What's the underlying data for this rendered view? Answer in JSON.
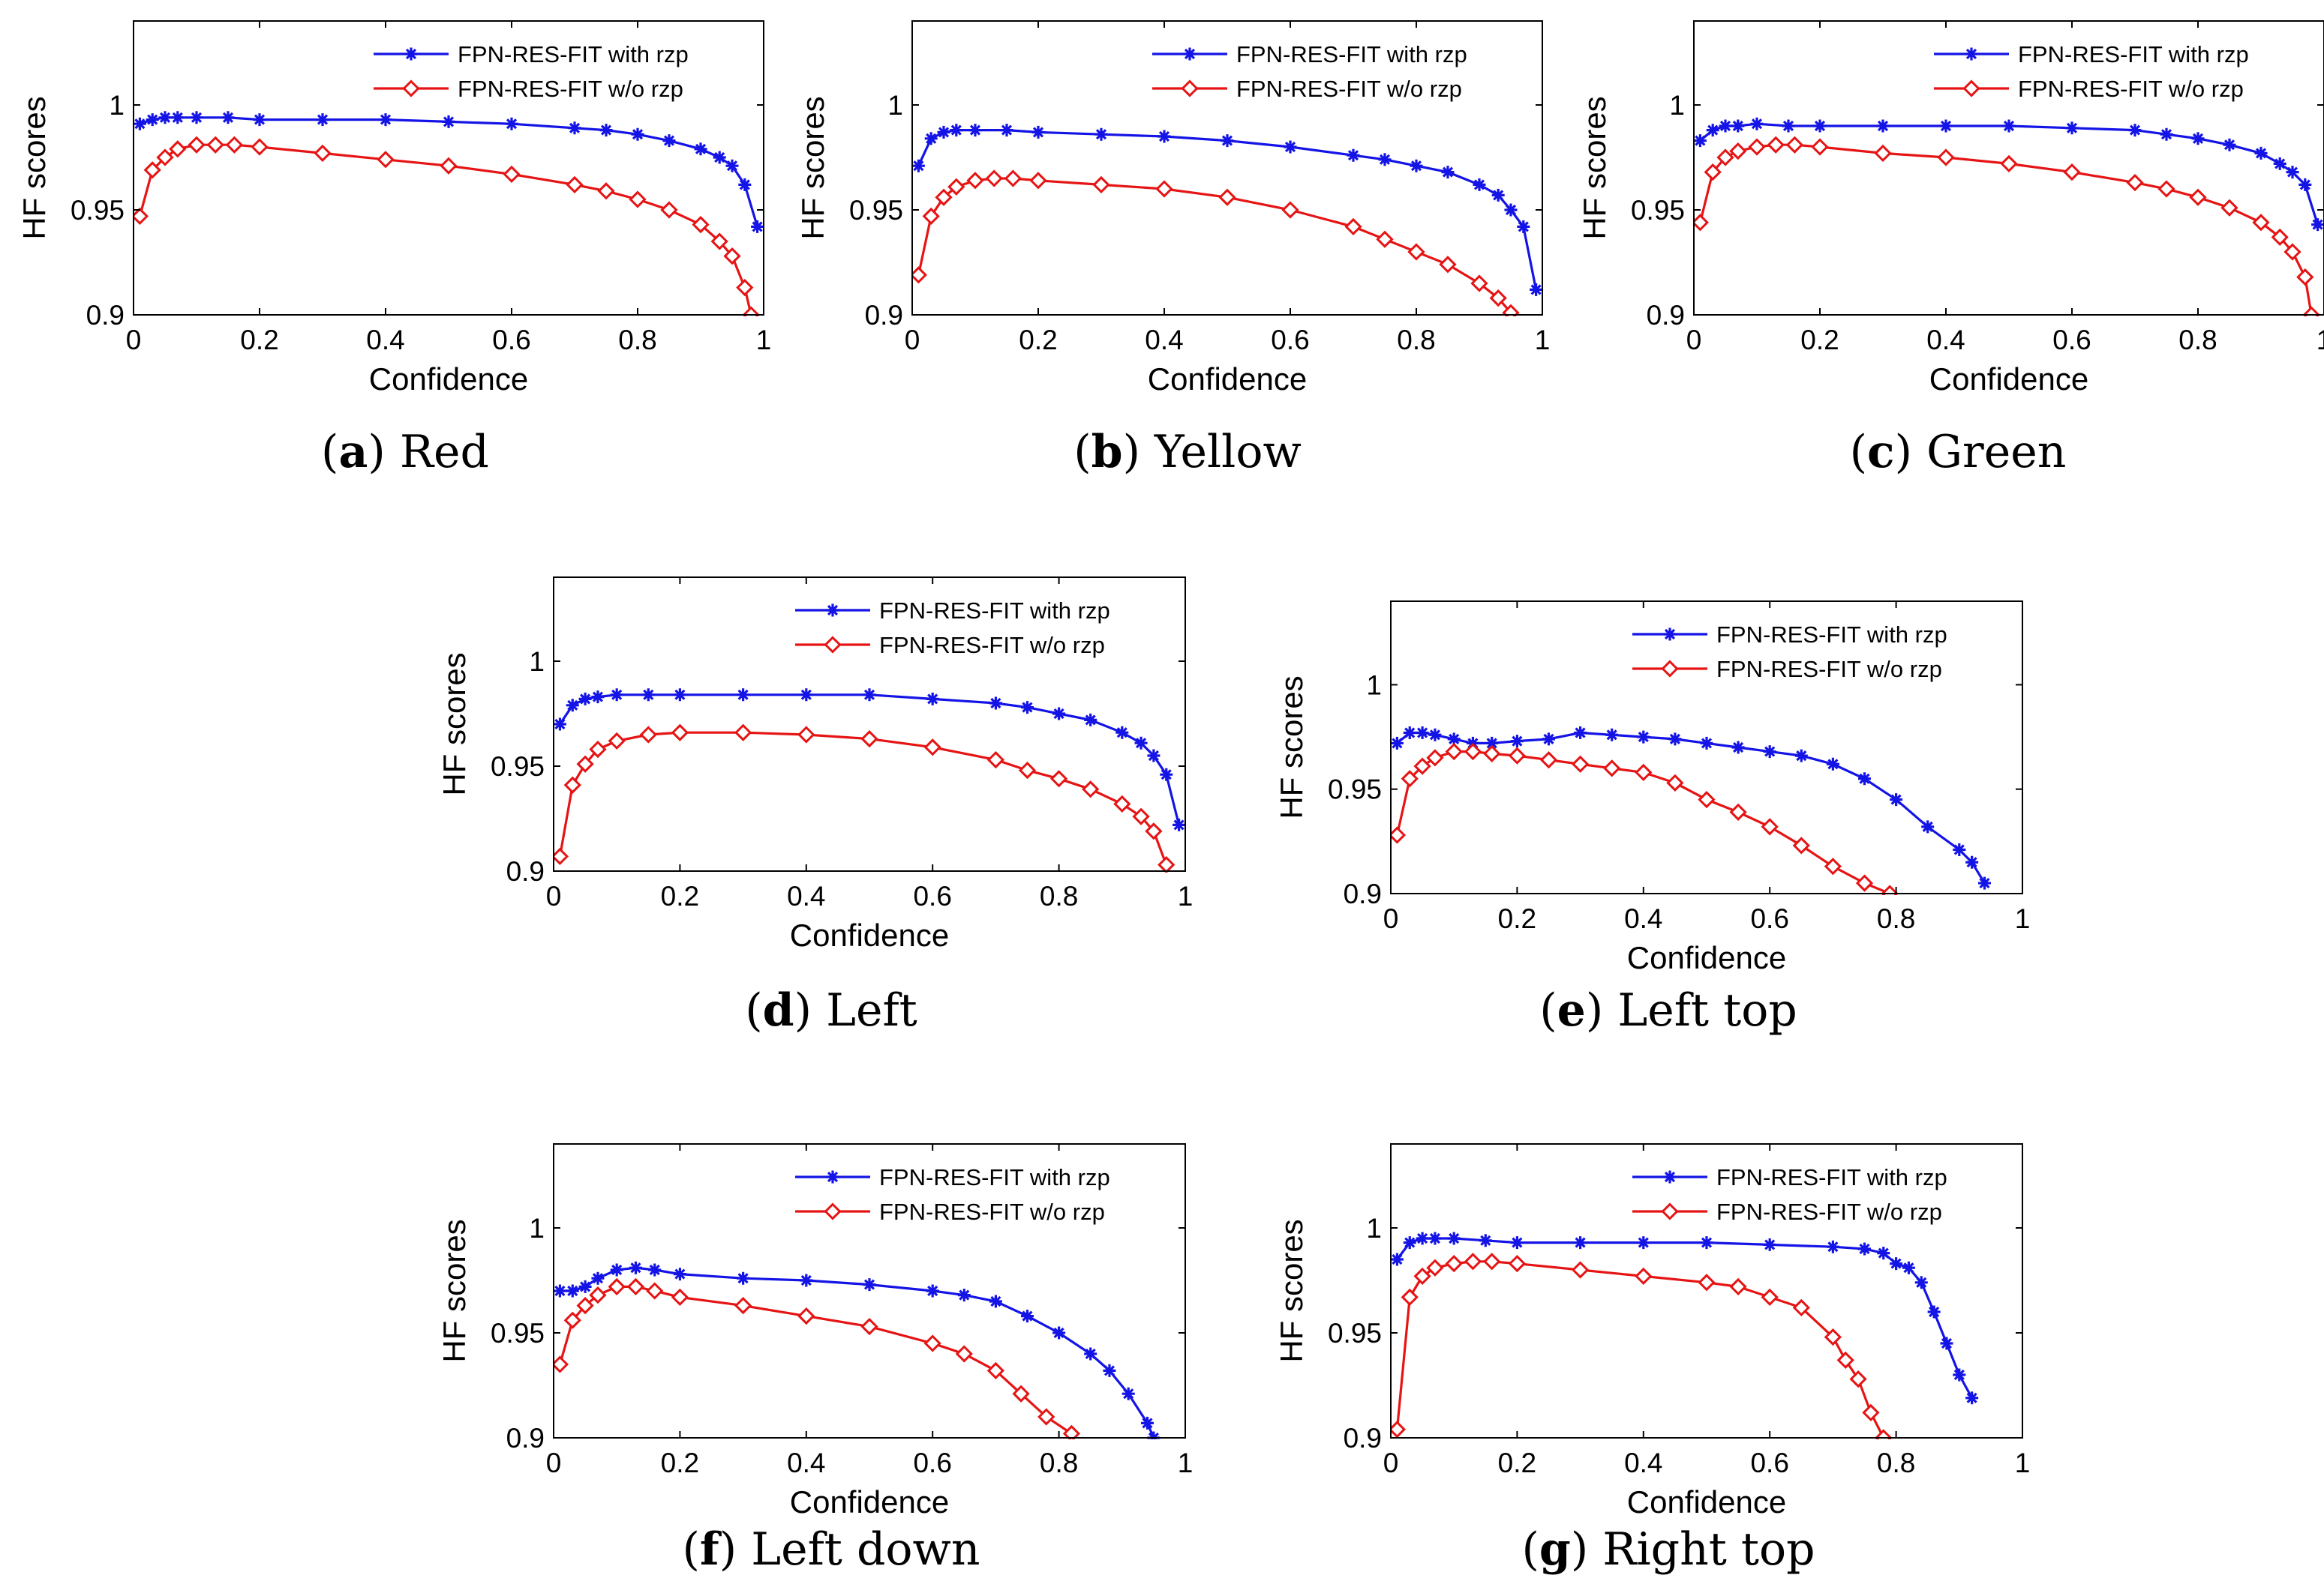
{
  "figure": {
    "colors": {
      "with_rzp": "#1414e6",
      "without_rzp": "#e61414",
      "axis": "#000000"
    },
    "markers": {
      "with_rzp": "asterisk",
      "without_rzp": "diamond"
    }
  },
  "chart_data": [
    {
      "id": "a",
      "letter": "a",
      "name": "Red",
      "type": "line",
      "xlabel": "Confidence",
      "ylabel": "HF scores",
      "xlim": [
        0,
        1
      ],
      "ylim": [
        0.9,
        1.04
      ],
      "xticks": [
        "0",
        "0.2",
        "0.4",
        "0.6",
        "0.8",
        "1"
      ],
      "yticks": [
        "0.9",
        "0.95",
        "1"
      ],
      "legend_position": "top-right",
      "series": [
        {
          "name": "FPN-RES-FIT with rzp",
          "marker": "asterisk",
          "x": [
            0.01,
            0.03,
            0.05,
            0.07,
            0.1,
            0.15,
            0.2,
            0.3,
            0.4,
            0.5,
            0.6,
            0.7,
            0.75,
            0.8,
            0.85,
            0.9,
            0.93,
            0.95,
            0.97,
            0.99
          ],
          "y": [
            0.991,
            0.993,
            0.994,
            0.994,
            0.994,
            0.994,
            0.993,
            0.993,
            0.993,
            0.992,
            0.991,
            0.989,
            0.988,
            0.986,
            0.983,
            0.979,
            0.975,
            0.971,
            0.962,
            0.942
          ]
        },
        {
          "name": "FPN-RES-FIT w/o rzp",
          "marker": "diamond",
          "x": [
            0.01,
            0.03,
            0.05,
            0.07,
            0.1,
            0.13,
            0.16,
            0.2,
            0.3,
            0.4,
            0.5,
            0.6,
            0.7,
            0.75,
            0.8,
            0.85,
            0.9,
            0.93,
            0.95,
            0.97,
            0.98
          ],
          "y": [
            0.947,
            0.969,
            0.975,
            0.979,
            0.981,
            0.981,
            0.981,
            0.98,
            0.977,
            0.974,
            0.971,
            0.967,
            0.962,
            0.959,
            0.955,
            0.95,
            0.943,
            0.935,
            0.928,
            0.913,
            0.9
          ]
        }
      ]
    },
    {
      "id": "b",
      "letter": "b",
      "name": "Yellow",
      "type": "line",
      "xlabel": "Confidence",
      "ylabel": "HF scores",
      "xlim": [
        0,
        1
      ],
      "ylim": [
        0.9,
        1.04
      ],
      "xticks": [
        "0",
        "0.2",
        "0.4",
        "0.6",
        "0.8",
        "1"
      ],
      "yticks": [
        "0.9",
        "0.95",
        "1"
      ],
      "legend_position": "top-right",
      "series": [
        {
          "name": "FPN-RES-FIT with rzp",
          "marker": "asterisk",
          "x": [
            0.01,
            0.03,
            0.05,
            0.07,
            0.1,
            0.15,
            0.2,
            0.3,
            0.4,
            0.5,
            0.6,
            0.7,
            0.75,
            0.8,
            0.85,
            0.9,
            0.93,
            0.95,
            0.97,
            0.99
          ],
          "y": [
            0.971,
            0.984,
            0.987,
            0.988,
            0.988,
            0.988,
            0.987,
            0.986,
            0.985,
            0.983,
            0.98,
            0.976,
            0.974,
            0.971,
            0.968,
            0.962,
            0.957,
            0.95,
            0.942,
            0.912
          ]
        },
        {
          "name": "FPN-RES-FIT w/o rzp",
          "marker": "diamond",
          "x": [
            0.01,
            0.03,
            0.05,
            0.07,
            0.1,
            0.13,
            0.16,
            0.2,
            0.3,
            0.4,
            0.5,
            0.6,
            0.7,
            0.75,
            0.8,
            0.85,
            0.9,
            0.93,
            0.95
          ],
          "y": [
            0.919,
            0.947,
            0.956,
            0.961,
            0.964,
            0.965,
            0.965,
            0.964,
            0.962,
            0.96,
            0.956,
            0.95,
            0.942,
            0.936,
            0.93,
            0.924,
            0.915,
            0.908,
            0.901
          ]
        }
      ]
    },
    {
      "id": "c",
      "letter": "c",
      "name": "Green",
      "type": "line",
      "xlabel": "Confidence",
      "ylabel": "HF scores",
      "xlim": [
        0,
        1
      ],
      "ylim": [
        0.9,
        1.04
      ],
      "xticks": [
        "0",
        "0.2",
        "0.4",
        "0.6",
        "0.8",
        "1"
      ],
      "yticks": [
        "0.9",
        "0.95",
        "1"
      ],
      "legend_position": "top-right",
      "series": [
        {
          "name": "FPN-RES-FIT with rzp",
          "marker": "asterisk",
          "x": [
            0.01,
            0.03,
            0.05,
            0.07,
            0.1,
            0.15,
            0.2,
            0.3,
            0.4,
            0.5,
            0.6,
            0.7,
            0.75,
            0.8,
            0.85,
            0.9,
            0.93,
            0.95,
            0.97,
            0.99
          ],
          "y": [
            0.983,
            0.988,
            0.99,
            0.99,
            0.991,
            0.99,
            0.99,
            0.99,
            0.99,
            0.99,
            0.989,
            0.988,
            0.986,
            0.984,
            0.981,
            0.977,
            0.972,
            0.968,
            0.962,
            0.943
          ]
        },
        {
          "name": "FPN-RES-FIT w/o rzp",
          "marker": "diamond",
          "x": [
            0.01,
            0.03,
            0.05,
            0.07,
            0.1,
            0.13,
            0.16,
            0.2,
            0.3,
            0.4,
            0.5,
            0.6,
            0.7,
            0.75,
            0.8,
            0.85,
            0.9,
            0.93,
            0.95,
            0.97,
            0.98
          ],
          "y": [
            0.944,
            0.968,
            0.975,
            0.978,
            0.98,
            0.981,
            0.981,
            0.98,
            0.977,
            0.975,
            0.972,
            0.968,
            0.963,
            0.96,
            0.956,
            0.951,
            0.944,
            0.937,
            0.93,
            0.918,
            0.9
          ]
        }
      ]
    },
    {
      "id": "d",
      "letter": "d",
      "name": "Left",
      "type": "line",
      "xlabel": "Confidence",
      "ylabel": "HF scores",
      "xlim": [
        0,
        1
      ],
      "ylim": [
        0.9,
        1.04
      ],
      "xticks": [
        "0",
        "0.2",
        "0.4",
        "0.6",
        "0.8",
        "1"
      ],
      "yticks": [
        "0.9",
        "0.95",
        "1"
      ],
      "legend_position": "top-right",
      "series": [
        {
          "name": "FPN-RES-FIT with rzp",
          "marker": "asterisk",
          "x": [
            0.01,
            0.03,
            0.05,
            0.07,
            0.1,
            0.15,
            0.2,
            0.3,
            0.4,
            0.5,
            0.6,
            0.7,
            0.75,
            0.8,
            0.85,
            0.9,
            0.93,
            0.95,
            0.97,
            0.99
          ],
          "y": [
            0.97,
            0.979,
            0.982,
            0.983,
            0.984,
            0.984,
            0.984,
            0.984,
            0.984,
            0.984,
            0.982,
            0.98,
            0.978,
            0.975,
            0.972,
            0.966,
            0.961,
            0.955,
            0.946,
            0.922
          ]
        },
        {
          "name": "FPN-RES-FIT w/o rzp",
          "marker": "diamond",
          "x": [
            0.01,
            0.03,
            0.05,
            0.07,
            0.1,
            0.15,
            0.2,
            0.3,
            0.4,
            0.5,
            0.6,
            0.7,
            0.75,
            0.8,
            0.85,
            0.9,
            0.93,
            0.95,
            0.97
          ],
          "y": [
            0.907,
            0.941,
            0.951,
            0.958,
            0.962,
            0.965,
            0.966,
            0.966,
            0.965,
            0.963,
            0.959,
            0.953,
            0.948,
            0.944,
            0.939,
            0.932,
            0.926,
            0.919,
            0.903
          ]
        }
      ]
    },
    {
      "id": "e",
      "letter": "e",
      "name": "Left top",
      "type": "line",
      "xlabel": "Confidence",
      "ylabel": "HF scores",
      "xlim": [
        0,
        1
      ],
      "ylim": [
        0.9,
        1.04
      ],
      "xticks": [
        "0",
        "0.2",
        "0.4",
        "0.6",
        "0.8",
        "1"
      ],
      "yticks": [
        "0.9",
        "0.95",
        "1"
      ],
      "legend_position": "top-right",
      "series": [
        {
          "name": "FPN-RES-FIT with rzp",
          "marker": "asterisk",
          "x": [
            0.01,
            0.03,
            0.05,
            0.07,
            0.1,
            0.13,
            0.16,
            0.2,
            0.25,
            0.3,
            0.35,
            0.4,
            0.45,
            0.5,
            0.55,
            0.6,
            0.65,
            0.7,
            0.75,
            0.8,
            0.85,
            0.9,
            0.92,
            0.94
          ],
          "y": [
            0.972,
            0.977,
            0.977,
            0.976,
            0.974,
            0.972,
            0.972,
            0.973,
            0.974,
            0.977,
            0.976,
            0.975,
            0.974,
            0.972,
            0.97,
            0.968,
            0.966,
            0.962,
            0.955,
            0.945,
            0.932,
            0.921,
            0.915,
            0.905
          ]
        },
        {
          "name": "FPN-RES-FIT w/o rzp",
          "marker": "diamond",
          "x": [
            0.01,
            0.03,
            0.05,
            0.07,
            0.1,
            0.13,
            0.16,
            0.2,
            0.25,
            0.3,
            0.35,
            0.4,
            0.45,
            0.5,
            0.55,
            0.6,
            0.65,
            0.7,
            0.75,
            0.79
          ],
          "y": [
            0.928,
            0.955,
            0.961,
            0.965,
            0.968,
            0.968,
            0.967,
            0.966,
            0.964,
            0.962,
            0.96,
            0.958,
            0.953,
            0.945,
            0.939,
            0.932,
            0.923,
            0.913,
            0.905,
            0.9
          ]
        }
      ]
    },
    {
      "id": "f",
      "letter": "f",
      "name": "Left down",
      "type": "line",
      "xlabel": "Confidence",
      "ylabel": "HF scores",
      "xlim": [
        0,
        1
      ],
      "ylim": [
        0.9,
        1.04
      ],
      "xticks": [
        "0",
        "0.2",
        "0.4",
        "0.6",
        "0.8",
        "1"
      ],
      "yticks": [
        "0.9",
        "0.95",
        "1"
      ],
      "legend_position": "top-right",
      "series": [
        {
          "name": "FPN-RES-FIT with rzp",
          "marker": "asterisk",
          "x": [
            0.01,
            0.03,
            0.05,
            0.07,
            0.1,
            0.13,
            0.16,
            0.2,
            0.3,
            0.4,
            0.5,
            0.6,
            0.65,
            0.7,
            0.75,
            0.8,
            0.85,
            0.88,
            0.91,
            0.94,
            0.95
          ],
          "y": [
            0.97,
            0.97,
            0.972,
            0.976,
            0.98,
            0.981,
            0.98,
            0.978,
            0.976,
            0.975,
            0.973,
            0.97,
            0.968,
            0.965,
            0.958,
            0.95,
            0.94,
            0.932,
            0.921,
            0.907,
            0.9
          ]
        },
        {
          "name": "FPN-RES-FIT w/o rzp",
          "marker": "diamond",
          "x": [
            0.01,
            0.03,
            0.05,
            0.07,
            0.1,
            0.13,
            0.16,
            0.2,
            0.3,
            0.4,
            0.5,
            0.6,
            0.65,
            0.7,
            0.74,
            0.78,
            0.82
          ],
          "y": [
            0.935,
            0.956,
            0.963,
            0.968,
            0.972,
            0.972,
            0.97,
            0.967,
            0.963,
            0.958,
            0.953,
            0.945,
            0.94,
            0.932,
            0.921,
            0.91,
            0.902
          ]
        }
      ]
    },
    {
      "id": "g",
      "letter": "g",
      "name": "Right top",
      "type": "line",
      "xlabel": "Confidence",
      "ylabel": "HF scores",
      "xlim": [
        0,
        1
      ],
      "ylim": [
        0.9,
        1.04
      ],
      "xticks": [
        "0",
        "0.2",
        "0.4",
        "0.6",
        "0.8",
        "1"
      ],
      "yticks": [
        "0.9",
        "0.95",
        "1"
      ],
      "legend_position": "top-right",
      "series": [
        {
          "name": "FPN-RES-FIT with rzp",
          "marker": "asterisk",
          "x": [
            0.01,
            0.03,
            0.05,
            0.07,
            0.1,
            0.15,
            0.2,
            0.3,
            0.4,
            0.5,
            0.6,
            0.7,
            0.75,
            0.78,
            0.8,
            0.82,
            0.84,
            0.86,
            0.88,
            0.9,
            0.92
          ],
          "y": [
            0.985,
            0.993,
            0.995,
            0.995,
            0.995,
            0.994,
            0.993,
            0.993,
            0.993,
            0.993,
            0.992,
            0.991,
            0.99,
            0.988,
            0.983,
            0.981,
            0.974,
            0.96,
            0.945,
            0.93,
            0.919
          ]
        },
        {
          "name": "FPN-RES-FIT w/o rzp",
          "marker": "diamond",
          "x": [
            0.01,
            0.03,
            0.05,
            0.07,
            0.1,
            0.13,
            0.16,
            0.2,
            0.3,
            0.4,
            0.5,
            0.55,
            0.6,
            0.65,
            0.7,
            0.72,
            0.74,
            0.76,
            0.78
          ],
          "y": [
            0.904,
            0.967,
            0.977,
            0.981,
            0.983,
            0.984,
            0.984,
            0.983,
            0.98,
            0.977,
            0.974,
            0.972,
            0.967,
            0.962,
            0.948,
            0.937,
            0.928,
            0.912,
            0.9
          ]
        }
      ]
    }
  ]
}
